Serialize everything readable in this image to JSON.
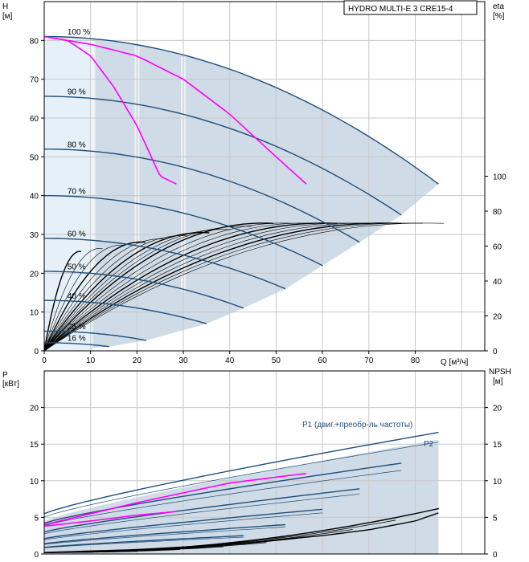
{
  "title": "HYDRO MULTI-E 3 CRE15-4",
  "colors": {
    "region": "#cfdbe6",
    "region_light": "#e6f0f8",
    "curve_dark": "#1f4e7a",
    "curve_thin": "#000000",
    "highlight": "#ff00ff"
  },
  "chart_data": [
    {
      "type": "line",
      "name": "head-efficiency",
      "ylabel_left": "H",
      "ylabel_left_unit": "[м]",
      "ylabel_right": "eta",
      "ylabel_right_unit": "[%]",
      "xlabel": "Q [м³/ч]",
      "xlim": [
        0,
        95
      ],
      "ylim_left": [
        0,
        90
      ],
      "ylim_right": [
        0,
        200
      ],
      "x_ticks": [
        0,
        10,
        20,
        30,
        40,
        50,
        60,
        70,
        80
      ],
      "y_ticks_left": [
        0,
        10,
        20,
        30,
        40,
        50,
        60,
        70,
        80
      ],
      "y_ticks_right": [
        0,
        20,
        40,
        60,
        80,
        100
      ],
      "speed_labels": [
        {
          "text": "100 %",
          "speed": 1.0,
          "x": 5
        },
        {
          "text": "90 %",
          "speed": 0.9,
          "x": 5
        },
        {
          "text": "80 %",
          "speed": 0.8,
          "x": 5
        },
        {
          "text": "70 %",
          "speed": 0.7,
          "x": 5
        },
        {
          "text": "60 %",
          "speed": 0.6,
          "x": 5
        },
        {
          "text": "50 %",
          "speed": 0.5,
          "x": 5
        },
        {
          "text": "40 %",
          "speed": 0.4,
          "x": 5
        },
        {
          "text": "25 %",
          "speed": 0.25,
          "x": 5
        },
        {
          "text": "16 %",
          "speed": 0.16,
          "x": 5
        }
      ],
      "head_curves": [
        {
          "speed": 1.0,
          "q_max": 85,
          "h0": 81,
          "h_end": 43
        },
        {
          "speed": 0.9,
          "q_max": 77,
          "h0": 65.6,
          "h_end": 35
        },
        {
          "speed": 0.8,
          "q_max": 68,
          "h0": 52,
          "h_end": 28
        },
        {
          "speed": 0.7,
          "q_max": 60,
          "h0": 40,
          "h_end": 22
        },
        {
          "speed": 0.6,
          "q_max": 52,
          "h0": 29,
          "h_end": 16
        },
        {
          "speed": 0.5,
          "q_max": 43,
          "h0": 20.5,
          "h_end": 11
        },
        {
          "speed": 0.4,
          "q_max": 35,
          "h0": 13,
          "h_end": 7
        },
        {
          "speed": 0.25,
          "q_max": 22,
          "h0": 5.1,
          "h_end": 2.7
        },
        {
          "speed": 0.16,
          "q_max": 14,
          "h0": 2.1,
          "h_end": 1.1
        }
      ],
      "highlight_curves": [
        {
          "x": [
            0,
            5,
            10,
            15,
            20,
            25,
            28.5
          ],
          "y": [
            81,
            80,
            76,
            68,
            58,
            45,
            43
          ]
        },
        {
          "x": [
            0,
            10,
            20,
            30,
            40,
            50,
            56.5
          ],
          "y": [
            81,
            79,
            76,
            70,
            61,
            50,
            43
          ]
        }
      ],
      "eta_max": 73
    },
    {
      "type": "line",
      "name": "power-npsh",
      "ylabel_left": "P",
      "ylabel_left_unit": "[кВт]",
      "ylabel_right": "NPSH",
      "ylabel_right_unit": "[м]",
      "xlim": [
        0,
        95
      ],
      "ylim_left": [
        0,
        25
      ],
      "ylim_right": [
        0,
        25
      ],
      "y_ticks_left": [
        0,
        5,
        10,
        15,
        20
      ],
      "y_ticks_right": [
        0,
        5,
        10,
        15,
        20
      ],
      "series_labels": [
        {
          "text": "P1 (двиг.+преобр-ль частоты)",
          "x": 85,
          "y": 17.5
        },
        {
          "text": "P2",
          "x": 85,
          "y": 14.7
        }
      ],
      "p1_curves": [
        {
          "speed": 1.0,
          "p0": 5.5,
          "p_end": 16.6,
          "q_max": 85
        },
        {
          "speed": 0.9,
          "p0": 4.2,
          "p_end": 12.4,
          "q_max": 77
        },
        {
          "speed": 0.8,
          "p0": 3.0,
          "p_end": 8.9,
          "q_max": 68
        },
        {
          "speed": 0.7,
          "p0": 2.1,
          "p_end": 6.1,
          "q_max": 60
        },
        {
          "speed": 0.6,
          "p0": 1.4,
          "p_end": 4.0,
          "q_max": 52
        },
        {
          "speed": 0.5,
          "p0": 0.9,
          "p_end": 2.5,
          "q_max": 43
        }
      ],
      "p2_end": 15.3,
      "npsh_curve": {
        "x": [
          0,
          20,
          40,
          60,
          70,
          80,
          85
        ],
        "y": [
          0.2,
          0.6,
          1.3,
          2.5,
          3.3,
          4.5,
          5.6
        ]
      },
      "highlight_curves": [
        {
          "x": [
            0,
            10,
            20,
            28.5
          ],
          "y": [
            3.8,
            4.5,
            5.3,
            5.8
          ]
        },
        {
          "x": [
            0,
            20,
            40,
            56.5
          ],
          "y": [
            4.0,
            7.0,
            9.7,
            11.0
          ]
        }
      ]
    }
  ]
}
